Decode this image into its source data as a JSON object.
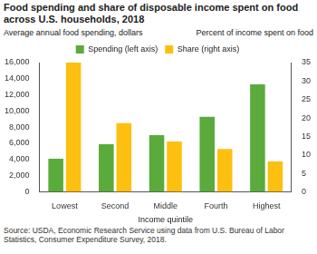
{
  "chart_data": {
    "type": "bar",
    "title": "Food spending and share of disposable income spent on food across U.S. households, 2018",
    "x_label": "Income quintile",
    "y_label": "Average annual food spending, dollars",
    "y2_label": "Percent of income spent on food",
    "source": "Source: USDA, Economic Research Service using data from U.S. Bureau of Labor Statistics, Consumer Expenditure Survey, 2018.",
    "categories": [
      "Lowest",
      "Second",
      "Middle",
      "Fourth",
      "Highest"
    ],
    "series": [
      {
        "name": "Spending (left axis)",
        "color": "#5aab3b",
        "values": [
          4100,
          5900,
          7000,
          9300,
          13300
        ]
      },
      {
        "name": "Share (right axis)",
        "color": "#fdc010",
        "axis": "y2",
        "values": [
          35,
          18.6,
          13.6,
          11.6,
          8.2
        ]
      }
    ],
    "ylim": [
      0,
      16000
    ],
    "yticks": [
      0,
      {
        "value": 2000,
        "label": "2,000"
      },
      {
        "value": 4000,
        "label": "4,000"
      },
      {
        "value": 6000,
        "label": "6,000"
      },
      {
        "value": 8000,
        "label": "8,000"
      },
      {
        "value": 10000,
        "label": "10,000"
      },
      {
        "value": 12000,
        "label": "12,000"
      },
      {
        "value": 14000,
        "label": "14,000"
      },
      {
        "value": 16000,
        "label": "16,000"
      }
    ],
    "y2lim": [
      0,
      35
    ],
    "y2ticks": [
      0,
      5,
      10,
      15,
      20,
      25,
      30,
      35
    ],
    "grid": false,
    "legend": "top"
  }
}
